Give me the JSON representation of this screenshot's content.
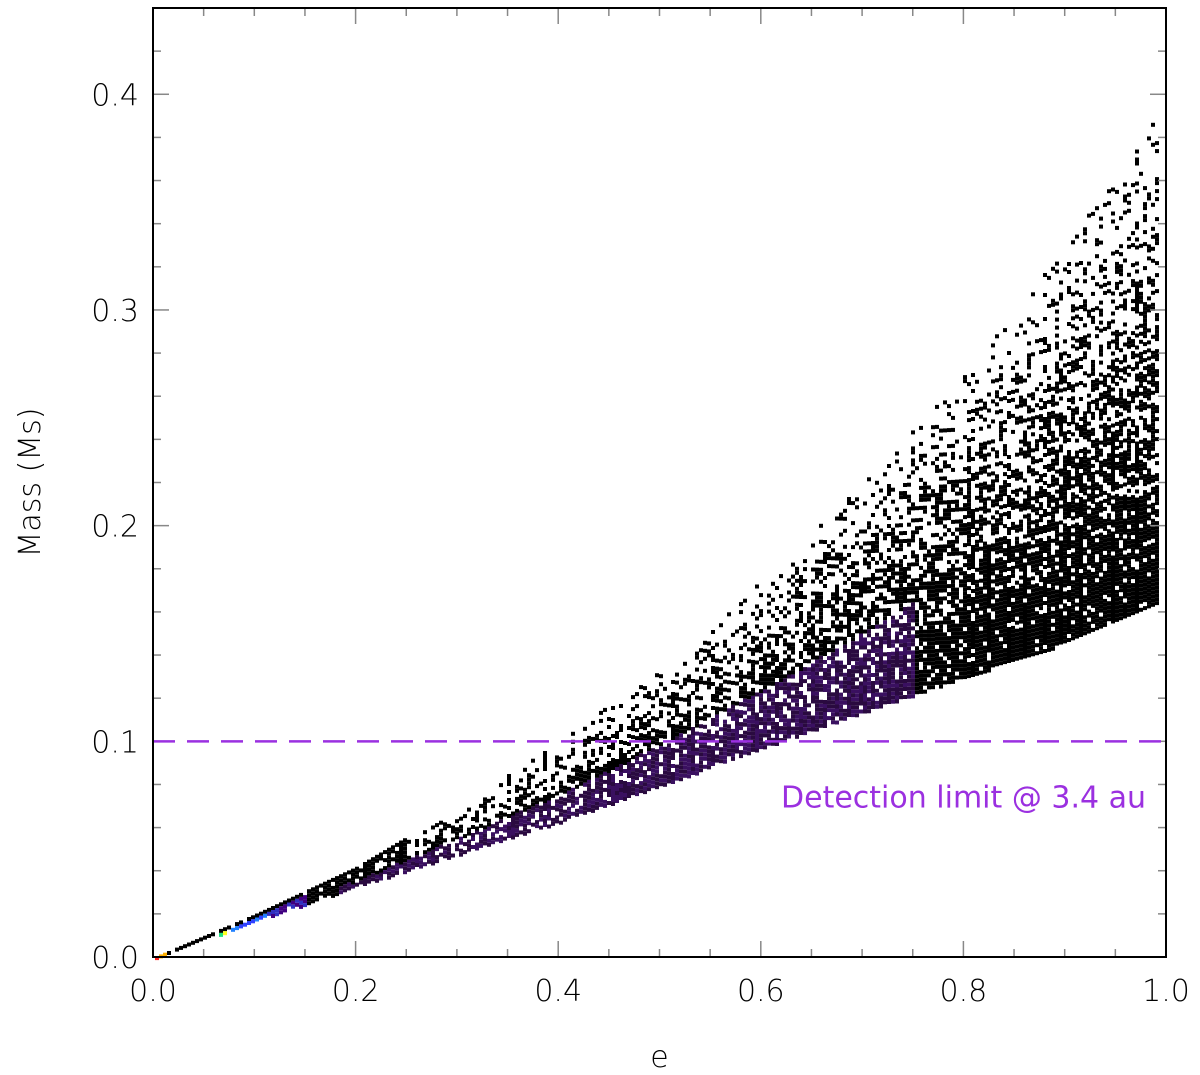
{
  "chart_data": {
    "type": "heatmap",
    "title": "",
    "xlabel": "e",
    "ylabel": "Mass (Ms)",
    "xlim": [
      0.0,
      1.0
    ],
    "ylim": [
      0.0,
      0.44
    ],
    "x_ticks": [
      {
        "value": 0.0,
        "label": "0.0"
      },
      {
        "value": 0.2,
        "label": "0.2"
      },
      {
        "value": 0.4,
        "label": "0.4"
      },
      {
        "value": 0.6,
        "label": "0.6"
      },
      {
        "value": 0.8,
        "label": "0.8"
      },
      {
        "value": 1.0,
        "label": "1.0"
      }
    ],
    "y_ticks": [
      {
        "value": 0.0,
        "label": "0.0"
      },
      {
        "value": 0.1,
        "label": "0.1"
      },
      {
        "value": 0.2,
        "label": "0.2"
      },
      {
        "value": 0.3,
        "label": "0.3"
      },
      {
        "value": 0.4,
        "label": "0.4"
      }
    ],
    "x_minor_step": 0.05,
    "y_minor_step": 0.02,
    "grid": false,
    "region_boundaries": {
      "e": [
        0.0,
        0.1,
        0.2,
        0.3,
        0.4,
        0.5,
        0.6,
        0.7,
        0.8,
        0.9,
        0.99
      ],
      "mass_lower": [
        0.0,
        0.017,
        0.033,
        0.048,
        0.063,
        0.08,
        0.097,
        0.114,
        0.13,
        0.146,
        0.165
      ],
      "mass_upper": [
        0.0,
        0.02,
        0.042,
        0.07,
        0.1,
        0.135,
        0.175,
        0.22,
        0.27,
        0.33,
        0.39
      ]
    },
    "density_peak": {
      "e_range": [
        0.0,
        0.15
      ],
      "description_colors": [
        "#ff0000",
        "#ffff00",
        "#00ff80",
        "#00a0ff",
        "#3030ff",
        "#400080",
        "#000000"
      ]
    },
    "reference_line": {
      "value": 0.1,
      "style": "dashed",
      "color": "#9b30e0",
      "label": "Detection limit @ 3.4 au"
    }
  }
}
